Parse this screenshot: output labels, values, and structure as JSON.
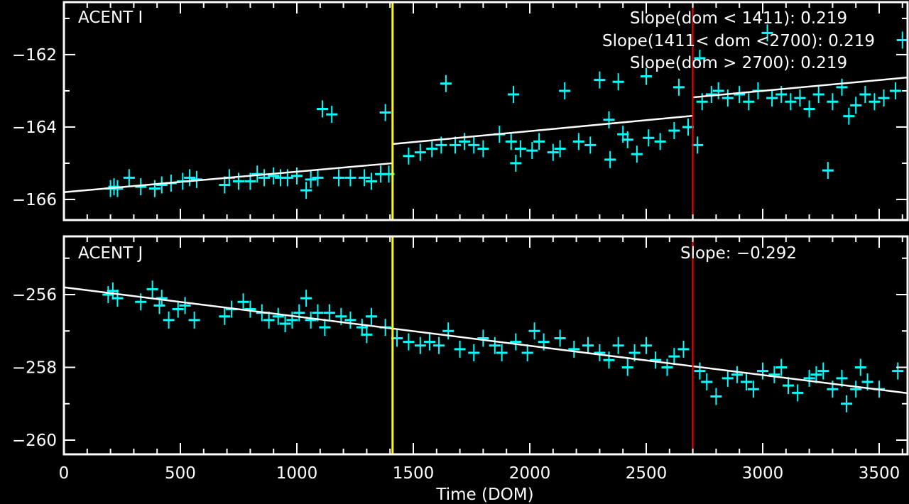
{
  "chart_data": [
    {
      "type": "scatter",
      "title": "ACENT I",
      "xlabel": "",
      "ylabel": "",
      "xlim": [
        0,
        3622
      ],
      "ylim": [
        -166.57,
        -160.55
      ],
      "yticks": [
        "-166",
        "-164",
        "-162"
      ],
      "ytick_values": [
        -166,
        -164,
        -162
      ],
      "marker_color": "#00FFFF",
      "annotations": [
        "Slope(dom < 1411): 0.219",
        "Slope(1411< dom <2700): 0.219",
        "Slope(dom > 2700): 0.219"
      ],
      "fit_segments": [
        {
          "x": [
            0,
            1411
          ],
          "y": [
            -165.8,
            -165.0
          ]
        },
        {
          "x": [
            1411,
            2700
          ],
          "y": [
            -164.47,
            -163.69
          ]
        },
        {
          "x": [
            2700,
            3622
          ],
          "y": [
            -163.18,
            -162.63
          ]
        }
      ],
      "points": [
        [
          200,
          -165.7
        ],
        [
          215,
          -165.65
        ],
        [
          230,
          -165.7
        ],
        [
          280,
          -165.4
        ],
        [
          330,
          -165.65
        ],
        [
          390,
          -165.7
        ],
        [
          420,
          -165.6
        ],
        [
          460,
          -165.55
        ],
        [
          510,
          -165.5
        ],
        [
          540,
          -165.4
        ],
        [
          570,
          -165.45
        ],
        [
          690,
          -165.6
        ],
        [
          710,
          -165.4
        ],
        [
          750,
          -165.5
        ],
        [
          800,
          -165.5
        ],
        [
          830,
          -165.3
        ],
        [
          860,
          -165.4
        ],
        [
          900,
          -165.35
        ],
        [
          930,
          -165.4
        ],
        [
          960,
          -165.4
        ],
        [
          1000,
          -165.35
        ],
        [
          1040,
          -165.75
        ],
        [
          1060,
          -165.45
        ],
        [
          1090,
          -165.4
        ],
        [
          1110,
          -163.5
        ],
        [
          1150,
          -163.65
        ],
        [
          1180,
          -165.4
        ],
        [
          1230,
          -165.4
        ],
        [
          1290,
          -165.4
        ],
        [
          1320,
          -165.5
        ],
        [
          1360,
          -165.3
        ],
        [
          1380,
          -163.6
        ],
        [
          1395,
          -165.3
        ],
        [
          1480,
          -164.8
        ],
        [
          1530,
          -164.7
        ],
        [
          1580,
          -164.6
        ],
        [
          1620,
          -164.5
        ],
        [
          1640,
          -162.8
        ],
        [
          1680,
          -164.5
        ],
        [
          1720,
          -164.4
        ],
        [
          1760,
          -164.5
        ],
        [
          1800,
          -164.6
        ],
        [
          1870,
          -164.2
        ],
        [
          1920,
          -164.4
        ],
        [
          1930,
          -163.1
        ],
        [
          1940,
          -165.0
        ],
        [
          1960,
          -164.6
        ],
        [
          2010,
          -164.65
        ],
        [
          2040,
          -164.4
        ],
        [
          2100,
          -164.7
        ],
        [
          2130,
          -164.6
        ],
        [
          2150,
          -163.0
        ],
        [
          2210,
          -164.4
        ],
        [
          2260,
          -164.5
        ],
        [
          2300,
          -162.7
        ],
        [
          2340,
          -163.8
        ],
        [
          2345,
          -164.9
        ],
        [
          2380,
          -162.75
        ],
        [
          2400,
          -164.2
        ],
        [
          2420,
          -164.35
        ],
        [
          2460,
          -164.75
        ],
        [
          2500,
          -162.6
        ],
        [
          2510,
          -164.3
        ],
        [
          2560,
          -164.4
        ],
        [
          2620,
          -164.1
        ],
        [
          2640,
          -162.9
        ],
        [
          2680,
          -164.0
        ],
        [
          2720,
          -164.5
        ],
        [
          2730,
          -162.1
        ],
        [
          2740,
          -163.3
        ],
        [
          2780,
          -163.1
        ],
        [
          2810,
          -163.0
        ],
        [
          2850,
          -163.2
        ],
        [
          2900,
          -163.1
        ],
        [
          2940,
          -163.3
        ],
        [
          2980,
          -163.0
        ],
        [
          3020,
          -161.4
        ],
        [
          3040,
          -163.2
        ],
        [
          3080,
          -163.1
        ],
        [
          3120,
          -163.3
        ],
        [
          3160,
          -163.2
        ],
        [
          3200,
          -163.5
        ],
        [
          3240,
          -163.1
        ],
        [
          3280,
          -165.2
        ],
        [
          3300,
          -163.3
        ],
        [
          3340,
          -162.9
        ],
        [
          3370,
          -163.7
        ],
        [
          3400,
          -163.4
        ],
        [
          3440,
          -163.1
        ],
        [
          3480,
          -163.3
        ],
        [
          3520,
          -163.2
        ],
        [
          3570,
          -163.0
        ],
        [
          3600,
          -161.6
        ]
      ]
    },
    {
      "type": "scatter",
      "title": "ACENT J",
      "xlabel": "Time (DOM)",
      "ylabel": "",
      "xlim": [
        0,
        3622
      ],
      "ylim": [
        -260.39,
        -254.4
      ],
      "xticks": [
        "0",
        "500",
        "1000",
        "1500",
        "2000",
        "2500",
        "3000",
        "3500"
      ],
      "xtick_values": [
        0,
        500,
        1000,
        1500,
        2000,
        2500,
        3000,
        3500
      ],
      "yticks": [
        "-260",
        "-258",
        "-256"
      ],
      "ytick_values": [
        -260,
        -258,
        -256
      ],
      "marker_color": "#00FFFF",
      "annotations": [
        "Slope: -0.292"
      ],
      "fit_segments": [
        {
          "x": [
            0,
            3622
          ],
          "y": [
            -255.8,
            -258.71
          ]
        }
      ],
      "points": [
        [
          190,
          -256.0
        ],
        [
          210,
          -255.9
        ],
        [
          230,
          -256.1
        ],
        [
          330,
          -256.2
        ],
        [
          380,
          -255.85
        ],
        [
          410,
          -256.3
        ],
        [
          420,
          -256.1
        ],
        [
          450,
          -256.7
        ],
        [
          490,
          -256.4
        ],
        [
          520,
          -256.3
        ],
        [
          560,
          -256.7
        ],
        [
          690,
          -256.6
        ],
        [
          720,
          -256.4
        ],
        [
          770,
          -256.2
        ],
        [
          800,
          -256.4
        ],
        [
          850,
          -256.5
        ],
        [
          880,
          -256.7
        ],
        [
          920,
          -256.6
        ],
        [
          950,
          -256.8
        ],
        [
          980,
          -256.7
        ],
        [
          1010,
          -256.5
        ],
        [
          1040,
          -256.1
        ],
        [
          1060,
          -256.7
        ],
        [
          1090,
          -256.5
        ],
        [
          1120,
          -256.9
        ],
        [
          1140,
          -256.5
        ],
        [
          1190,
          -256.6
        ],
        [
          1230,
          -256.7
        ],
        [
          1280,
          -256.9
        ],
        [
          1300,
          -257.1
        ],
        [
          1320,
          -256.6
        ],
        [
          1380,
          -256.9
        ],
        [
          1430,
          -257.2
        ],
        [
          1480,
          -257.3
        ],
        [
          1530,
          -257.4
        ],
        [
          1570,
          -257.3
        ],
        [
          1610,
          -257.4
        ],
        [
          1650,
          -257.0
        ],
        [
          1700,
          -257.5
        ],
        [
          1760,
          -257.6
        ],
        [
          1800,
          -257.2
        ],
        [
          1850,
          -257.4
        ],
        [
          1880,
          -257.6
        ],
        [
          1940,
          -257.3
        ],
        [
          1990,
          -257.6
        ],
        [
          2020,
          -257.0
        ],
        [
          2060,
          -257.3
        ],
        [
          2130,
          -257.2
        ],
        [
          2190,
          -257.5
        ],
        [
          2250,
          -257.4
        ],
        [
          2300,
          -257.6
        ],
        [
          2340,
          -257.8
        ],
        [
          2380,
          -257.4
        ],
        [
          2420,
          -258.0
        ],
        [
          2450,
          -257.6
        ],
        [
          2500,
          -257.4
        ],
        [
          2540,
          -257.8
        ],
        [
          2590,
          -258.0
        ],
        [
          2620,
          -257.7
        ],
        [
          2660,
          -257.5
        ],
        [
          2730,
          -258.1
        ],
        [
          2760,
          -258.4
        ],
        [
          2800,
          -258.8
        ],
        [
          2850,
          -258.3
        ],
        [
          2890,
          -258.2
        ],
        [
          2930,
          -258.4
        ],
        [
          2960,
          -258.6
        ],
        [
          3000,
          -258.1
        ],
        [
          3050,
          -258.2
        ],
        [
          3080,
          -258.0
        ],
        [
          3110,
          -258.5
        ],
        [
          3150,
          -258.7
        ],
        [
          3200,
          -258.3
        ],
        [
          3230,
          -258.2
        ],
        [
          3260,
          -258.1
        ],
        [
          3300,
          -258.6
        ],
        [
          3340,
          -258.3
        ],
        [
          3360,
          -259.0
        ],
        [
          3400,
          -258.6
        ],
        [
          3420,
          -258.0
        ],
        [
          3450,
          -258.4
        ],
        [
          3500,
          -258.6
        ],
        [
          3580,
          -258.1
        ]
      ]
    }
  ],
  "vertical_lines": [
    {
      "x": 1411,
      "color": "#FFFF00"
    },
    {
      "x": 2700,
      "color": "#FF0000"
    }
  ],
  "colors": {
    "background": "#000000",
    "axes": "#FFFFFF",
    "fit": "#FFFFFF",
    "points": "#00FFFF"
  }
}
